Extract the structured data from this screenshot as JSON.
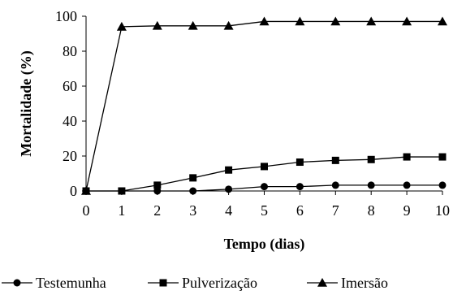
{
  "chart_data": {
    "type": "line",
    "title": "",
    "xlabel": "Tempo (dias)",
    "ylabel": "Mortalidade (%)",
    "x": [
      0,
      1,
      2,
      3,
      4,
      5,
      6,
      7,
      8,
      9,
      10
    ],
    "xlim": [
      0,
      10
    ],
    "ylim": [
      0,
      100
    ],
    "x_ticks": [
      "0",
      "1",
      "2",
      "3",
      "4",
      "5",
      "6",
      "7",
      "8",
      "9",
      "10"
    ],
    "y_ticks": [
      "0",
      "20",
      "40",
      "60",
      "80",
      "100"
    ],
    "grid": false,
    "legend_position": "bottom",
    "line_color": "#000000",
    "series": [
      {
        "name": "Testemunha",
        "marker": "circle",
        "values": [
          0,
          0,
          0,
          0,
          1,
          2.5,
          2.5,
          3.3,
          3.3,
          3.3,
          3.3
        ]
      },
      {
        "name": "Pulverização",
        "marker": "square",
        "values": [
          0,
          0,
          3.3,
          7.5,
          12,
          14,
          16.5,
          17.5,
          18,
          19.5,
          19.5
        ]
      },
      {
        "name": "Imersão",
        "marker": "triangle",
        "values": [
          0,
          94,
          94.5,
          94.5,
          94.5,
          97,
          97,
          97,
          97,
          97,
          97
        ]
      }
    ]
  }
}
